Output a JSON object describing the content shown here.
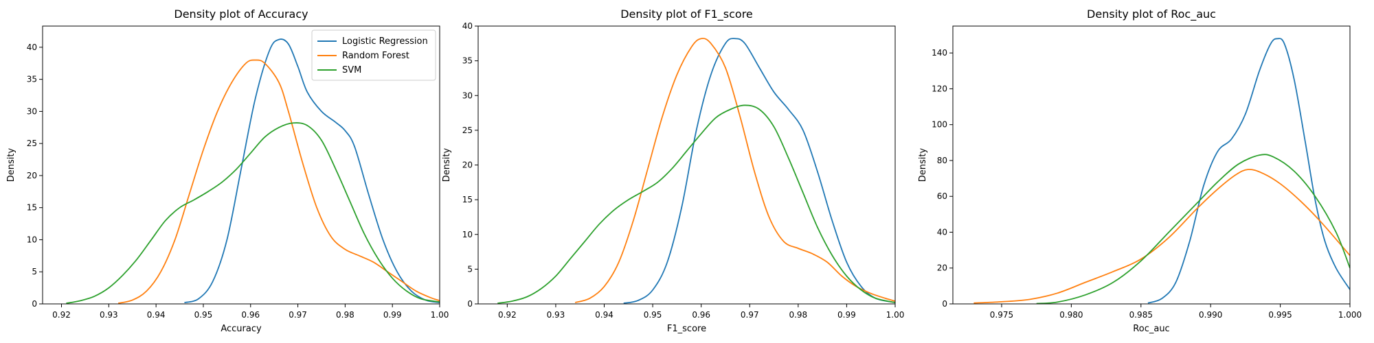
{
  "colors": {
    "logistic_regression": "#1f77b4",
    "random_forest": "#ff7f0e",
    "svm": "#2ca02c"
  },
  "chart_data": [
    {
      "type": "line",
      "title": "Density plot of Accuracy",
      "xlabel": "Accuracy",
      "ylabel": "Density",
      "xlim": [
        0.916,
        1.0
      ],
      "ylim": [
        0,
        43.3
      ],
      "xticks": [
        "0.92",
        "0.93",
        "0.94",
        "0.95",
        "0.96",
        "0.97",
        "0.98",
        "0.99",
        "1.00"
      ],
      "yticks": [
        "0",
        "5",
        "10",
        "15",
        "20",
        "25",
        "30",
        "35",
        "40"
      ],
      "legend": "top-right",
      "series": [
        {
          "name": "Logistic Regression",
          "color": "#1f77b4",
          "points": [
            [
              0.946,
              0.2
            ],
            [
              0.949,
              0.8
            ],
            [
              0.952,
              3.5
            ],
            [
              0.955,
              10
            ],
            [
              0.958,
              21
            ],
            [
              0.961,
              32
            ],
            [
              0.964,
              39.5
            ],
            [
              0.966,
              41.2
            ],
            [
              0.968,
              40.5
            ],
            [
              0.97,
              37
            ],
            [
              0.972,
              33
            ],
            [
              0.975,
              30
            ],
            [
              0.978,
              28.3
            ],
            [
              0.98,
              27
            ],
            [
              0.982,
              24.5
            ],
            [
              0.985,
              17
            ],
            [
              0.988,
              10
            ],
            [
              0.991,
              5
            ],
            [
              0.994,
              2
            ],
            [
              0.997,
              0.6
            ],
            [
              1.0,
              0.2
            ]
          ]
        },
        {
          "name": "Random Forest",
          "color": "#ff7f0e",
          "points": [
            [
              0.932,
              0.1
            ],
            [
              0.935,
              0.6
            ],
            [
              0.938,
              2
            ],
            [
              0.941,
              5
            ],
            [
              0.944,
              10
            ],
            [
              0.947,
              17
            ],
            [
              0.95,
              24
            ],
            [
              0.953,
              30
            ],
            [
              0.956,
              34.5
            ],
            [
              0.959,
              37.5
            ],
            [
              0.961,
              38
            ],
            [
              0.963,
              37.5
            ],
            [
              0.966,
              34.5
            ],
            [
              0.968,
              30
            ],
            [
              0.971,
              22
            ],
            [
              0.974,
              15
            ],
            [
              0.977,
              10.5
            ],
            [
              0.98,
              8.5
            ],
            [
              0.983,
              7.5
            ],
            [
              0.986,
              6.5
            ],
            [
              0.989,
              5
            ],
            [
              0.992,
              3.5
            ],
            [
              0.995,
              2
            ],
            [
              0.998,
              1
            ],
            [
              1.0,
              0.5
            ]
          ]
        },
        {
          "name": "SVM",
          "color": "#2ca02c",
          "points": [
            [
              0.921,
              0.1
            ],
            [
              0.924,
              0.5
            ],
            [
              0.927,
              1.2
            ],
            [
              0.93,
              2.5
            ],
            [
              0.933,
              4.5
            ],
            [
              0.936,
              7
            ],
            [
              0.939,
              10
            ],
            [
              0.942,
              13
            ],
            [
              0.945,
              15
            ],
            [
              0.948,
              16.2
            ],
            [
              0.951,
              17.5
            ],
            [
              0.954,
              19
            ],
            [
              0.957,
              21
            ],
            [
              0.96,
              23.5
            ],
            [
              0.963,
              26
            ],
            [
              0.966,
              27.5
            ],
            [
              0.969,
              28.2
            ],
            [
              0.972,
              27.8
            ],
            [
              0.975,
              25.5
            ],
            [
              0.978,
              21
            ],
            [
              0.981,
              16
            ],
            [
              0.984,
              11
            ],
            [
              0.987,
              7
            ],
            [
              0.99,
              4
            ],
            [
              0.993,
              2
            ],
            [
              0.996,
              0.8
            ],
            [
              1.0,
              0.3
            ]
          ]
        }
      ]
    },
    {
      "type": "line",
      "title": "Density plot of F1_score",
      "xlabel": "F1_score",
      "ylabel": "Density",
      "xlim": [
        0.914,
        1.0
      ],
      "ylim": [
        0,
        40
      ],
      "xticks": [
        "0.92",
        "0.93",
        "0.94",
        "0.95",
        "0.96",
        "0.97",
        "0.98",
        "0.99",
        "1.00"
      ],
      "yticks": [
        "0",
        "5",
        "10",
        "15",
        "20",
        "25",
        "30",
        "35",
        "40"
      ],
      "series": [
        {
          "name": "Logistic Regression",
          "color": "#1f77b4",
          "points": [
            [
              0.944,
              0.1
            ],
            [
              0.947,
              0.5
            ],
            [
              0.95,
              2
            ],
            [
              0.953,
              6
            ],
            [
              0.956,
              14
            ],
            [
              0.959,
              25
            ],
            [
              0.962,
              33
            ],
            [
              0.965,
              37.5
            ],
            [
              0.967,
              38.2
            ],
            [
              0.969,
              37.5
            ],
            [
              0.972,
              34
            ],
            [
              0.975,
              30.5
            ],
            [
              0.978,
              28
            ],
            [
              0.981,
              25
            ],
            [
              0.984,
              19
            ],
            [
              0.987,
              12
            ],
            [
              0.99,
              6
            ],
            [
              0.993,
              2.5
            ],
            [
              0.996,
              0.8
            ],
            [
              1.0,
              0.2
            ]
          ]
        },
        {
          "name": "Random Forest",
          "color": "#ff7f0e",
          "points": [
            [
              0.934,
              0.2
            ],
            [
              0.937,
              0.8
            ],
            [
              0.94,
              2.5
            ],
            [
              0.943,
              6
            ],
            [
              0.946,
              12
            ],
            [
              0.949,
              19.5
            ],
            [
              0.952,
              27
            ],
            [
              0.955,
              33
            ],
            [
              0.958,
              37
            ],
            [
              0.96,
              38.2
            ],
            [
              0.962,
              37.5
            ],
            [
              0.965,
              34
            ],
            [
              0.968,
              27
            ],
            [
              0.971,
              19
            ],
            [
              0.974,
              12.5
            ],
            [
              0.977,
              9
            ],
            [
              0.98,
              8
            ],
            [
              0.983,
              7.2
            ],
            [
              0.986,
              6
            ],
            [
              0.989,
              4
            ],
            [
              0.992,
              2.5
            ],
            [
              0.995,
              1.5
            ],
            [
              0.998,
              0.8
            ],
            [
              1.0,
              0.4
            ]
          ]
        },
        {
          "name": "SVM",
          "color": "#2ca02c",
          "points": [
            [
              0.918,
              0.1
            ],
            [
              0.921,
              0.4
            ],
            [
              0.924,
              1
            ],
            [
              0.927,
              2.2
            ],
            [
              0.93,
              4
            ],
            [
              0.933,
              6.5
            ],
            [
              0.936,
              9
            ],
            [
              0.939,
              11.5
            ],
            [
              0.942,
              13.5
            ],
            [
              0.945,
              15
            ],
            [
              0.948,
              16.2
            ],
            [
              0.951,
              17.5
            ],
            [
              0.954,
              19.5
            ],
            [
              0.957,
              22
            ],
            [
              0.96,
              24.5
            ],
            [
              0.963,
              26.8
            ],
            [
              0.966,
              28
            ],
            [
              0.969,
              28.6
            ],
            [
              0.972,
              28
            ],
            [
              0.975,
              25.5
            ],
            [
              0.978,
              21
            ],
            [
              0.981,
              16
            ],
            [
              0.984,
              11
            ],
            [
              0.987,
              7
            ],
            [
              0.99,
              4
            ],
            [
              0.993,
              2
            ],
            [
              0.996,
              0.8
            ],
            [
              1.0,
              0.2
            ]
          ]
        }
      ]
    },
    {
      "type": "line",
      "title": "Density plot of Roc_auc",
      "xlabel": "Roc_auc",
      "ylabel": "Density",
      "xlim": [
        0.9715,
        1.0
      ],
      "ylim": [
        0,
        155
      ],
      "xticks": [
        "0.975",
        "0.980",
        "0.985",
        "0.990",
        "0.995",
        "1.000"
      ],
      "yticks": [
        "0",
        "20",
        "40",
        "60",
        "80",
        "100",
        "120",
        "140"
      ],
      "series": [
        {
          "name": "Logistic Regression",
          "color": "#1f77b4",
          "points": [
            [
              0.9855,
              0.5
            ],
            [
              0.9865,
              3
            ],
            [
              0.9875,
              12
            ],
            [
              0.9885,
              35
            ],
            [
              0.9895,
              66
            ],
            [
              0.9905,
              85
            ],
            [
              0.9915,
              92
            ],
            [
              0.9925,
              106
            ],
            [
              0.9935,
              130
            ],
            [
              0.9943,
              145
            ],
            [
              0.9948,
              148
            ],
            [
              0.9953,
              145
            ],
            [
              0.996,
              125
            ],
            [
              0.9968,
              90
            ],
            [
              0.9975,
              58
            ],
            [
              0.9982,
              35
            ],
            [
              0.999,
              20
            ],
            [
              1.0,
              8
            ]
          ]
        },
        {
          "name": "Random Forest",
          "color": "#ff7f0e",
          "points": [
            [
              0.973,
              0.5
            ],
            [
              0.975,
              1.2
            ],
            [
              0.977,
              2.5
            ],
            [
              0.979,
              6
            ],
            [
              0.981,
              12
            ],
            [
              0.983,
              18
            ],
            [
              0.985,
              25
            ],
            [
              0.987,
              37
            ],
            [
              0.989,
              53
            ],
            [
              0.9905,
              64
            ],
            [
              0.9918,
              72
            ],
            [
              0.9927,
              75
            ],
            [
              0.9937,
              73
            ],
            [
              0.995,
              67
            ],
            [
              0.9965,
              57
            ],
            [
              0.998,
              45
            ],
            [
              1.0,
              27
            ]
          ]
        },
        {
          "name": "SVM",
          "color": "#2ca02c",
          "points": [
            [
              0.9775,
              0.2
            ],
            [
              0.979,
              1
            ],
            [
              0.981,
              5
            ],
            [
              0.983,
              12
            ],
            [
              0.985,
              24
            ],
            [
              0.987,
              40
            ],
            [
              0.989,
              56
            ],
            [
              0.9905,
              68
            ],
            [
              0.992,
              78
            ],
            [
              0.9935,
              83
            ],
            [
              0.9945,
              82
            ],
            [
              0.996,
              74
            ],
            [
              0.9975,
              60
            ],
            [
              0.999,
              40
            ],
            [
              1.0,
              20
            ]
          ]
        }
      ]
    }
  ]
}
